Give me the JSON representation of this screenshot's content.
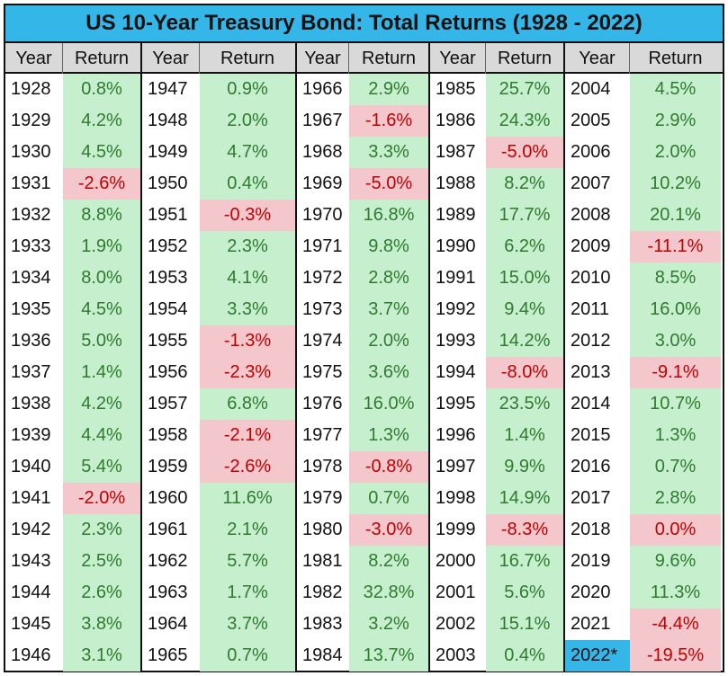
{
  "title": "US 10-Year Treasury Bond: Total Returns (1928 - 2022)",
  "colors": {
    "title_bg": "#35b6e8",
    "positive_bg": "#c6efce",
    "positive_text": "#2f7a2f",
    "negative_bg": "#f4c7cc",
    "negative_text": "#c00000",
    "header_bg": "#d9d9d9",
    "highlight_year": "#35b6e8"
  },
  "chart_data": {
    "type": "table",
    "title": "US 10-Year Treasury Bond: Total Returns (1928 - 2022)",
    "headers": [
      "Year",
      "Return"
    ],
    "columns": [
      {
        "rows": [
          [
            "1928",
            "0.8%"
          ],
          [
            "1929",
            "4.2%"
          ],
          [
            "1930",
            "4.5%"
          ],
          [
            "1931",
            "-2.6%"
          ],
          [
            "1932",
            "8.8%"
          ],
          [
            "1933",
            "1.9%"
          ],
          [
            "1934",
            "8.0%"
          ],
          [
            "1935",
            "4.5%"
          ],
          [
            "1936",
            "5.0%"
          ],
          [
            "1937",
            "1.4%"
          ],
          [
            "1938",
            "4.2%"
          ],
          [
            "1939",
            "4.4%"
          ],
          [
            "1940",
            "5.4%"
          ],
          [
            "1941",
            "-2.0%"
          ],
          [
            "1942",
            "2.3%"
          ],
          [
            "1943",
            "2.5%"
          ],
          [
            "1944",
            "2.6%"
          ],
          [
            "1945",
            "3.8%"
          ],
          [
            "1946",
            "3.1%"
          ]
        ]
      },
      {
        "rows": [
          [
            "1947",
            "0.9%"
          ],
          [
            "1948",
            "2.0%"
          ],
          [
            "1949",
            "4.7%"
          ],
          [
            "1950",
            "0.4%"
          ],
          [
            "1951",
            "-0.3%"
          ],
          [
            "1952",
            "2.3%"
          ],
          [
            "1953",
            "4.1%"
          ],
          [
            "1954",
            "3.3%"
          ],
          [
            "1955",
            "-1.3%"
          ],
          [
            "1956",
            "-2.3%"
          ],
          [
            "1957",
            "6.8%"
          ],
          [
            "1958",
            "-2.1%"
          ],
          [
            "1959",
            "-2.6%"
          ],
          [
            "1960",
            "11.6%"
          ],
          [
            "1961",
            "2.1%"
          ],
          [
            "1962",
            "5.7%"
          ],
          [
            "1963",
            "1.7%"
          ],
          [
            "1964",
            "3.7%"
          ],
          [
            "1965",
            "0.7%"
          ]
        ]
      },
      {
        "rows": [
          [
            "1966",
            "2.9%"
          ],
          [
            "1967",
            "-1.6%"
          ],
          [
            "1968",
            "3.3%"
          ],
          [
            "1969",
            "-5.0%"
          ],
          [
            "1970",
            "16.8%"
          ],
          [
            "1971",
            "9.8%"
          ],
          [
            "1972",
            "2.8%"
          ],
          [
            "1973",
            "3.7%"
          ],
          [
            "1974",
            "2.0%"
          ],
          [
            "1975",
            "3.6%"
          ],
          [
            "1976",
            "16.0%"
          ],
          [
            "1977",
            "1.3%"
          ],
          [
            "1978",
            "-0.8%"
          ],
          [
            "1979",
            "0.7%"
          ],
          [
            "1980",
            "-3.0%"
          ],
          [
            "1981",
            "8.2%"
          ],
          [
            "1982",
            "32.8%"
          ],
          [
            "1983",
            "3.2%"
          ],
          [
            "1984",
            "13.7%"
          ]
        ]
      },
      {
        "rows": [
          [
            "1985",
            "25.7%"
          ],
          [
            "1986",
            "24.3%"
          ],
          [
            "1987",
            "-5.0%"
          ],
          [
            "1988",
            "8.2%"
          ],
          [
            "1989",
            "17.7%"
          ],
          [
            "1990",
            "6.2%"
          ],
          [
            "1991",
            "15.0%"
          ],
          [
            "1992",
            "9.4%"
          ],
          [
            "1993",
            "14.2%"
          ],
          [
            "1994",
            "-8.0%"
          ],
          [
            "1995",
            "23.5%"
          ],
          [
            "1996",
            "1.4%"
          ],
          [
            "1997",
            "9.9%"
          ],
          [
            "1998",
            "14.9%"
          ],
          [
            "1999",
            "-8.3%"
          ],
          [
            "2000",
            "16.7%"
          ],
          [
            "2001",
            "5.6%"
          ],
          [
            "2002",
            "15.1%"
          ],
          [
            "2003",
            "0.4%"
          ]
        ]
      },
      {
        "rows": [
          [
            "2004",
            "4.5%"
          ],
          [
            "2005",
            "2.9%"
          ],
          [
            "2006",
            "2.0%"
          ],
          [
            "2007",
            "10.2%"
          ],
          [
            "2008",
            "20.1%"
          ],
          [
            "2009",
            "-11.1%"
          ],
          [
            "2010",
            "8.5%"
          ],
          [
            "2011",
            "16.0%"
          ],
          [
            "2012",
            "3.0%"
          ],
          [
            "2013",
            "-9.1%"
          ],
          [
            "2014",
            "10.7%"
          ],
          [
            "2015",
            "1.3%"
          ],
          [
            "2016",
            "0.7%"
          ],
          [
            "2017",
            "2.8%"
          ],
          [
            "2018",
            "0.0%"
          ],
          [
            "2019",
            "9.6%"
          ],
          [
            "2020",
            "11.3%"
          ],
          [
            "2021",
            "-4.4%"
          ],
          [
            "2022*",
            "-19.5%"
          ]
        ]
      }
    ],
    "highlighted_year": "2022*"
  }
}
